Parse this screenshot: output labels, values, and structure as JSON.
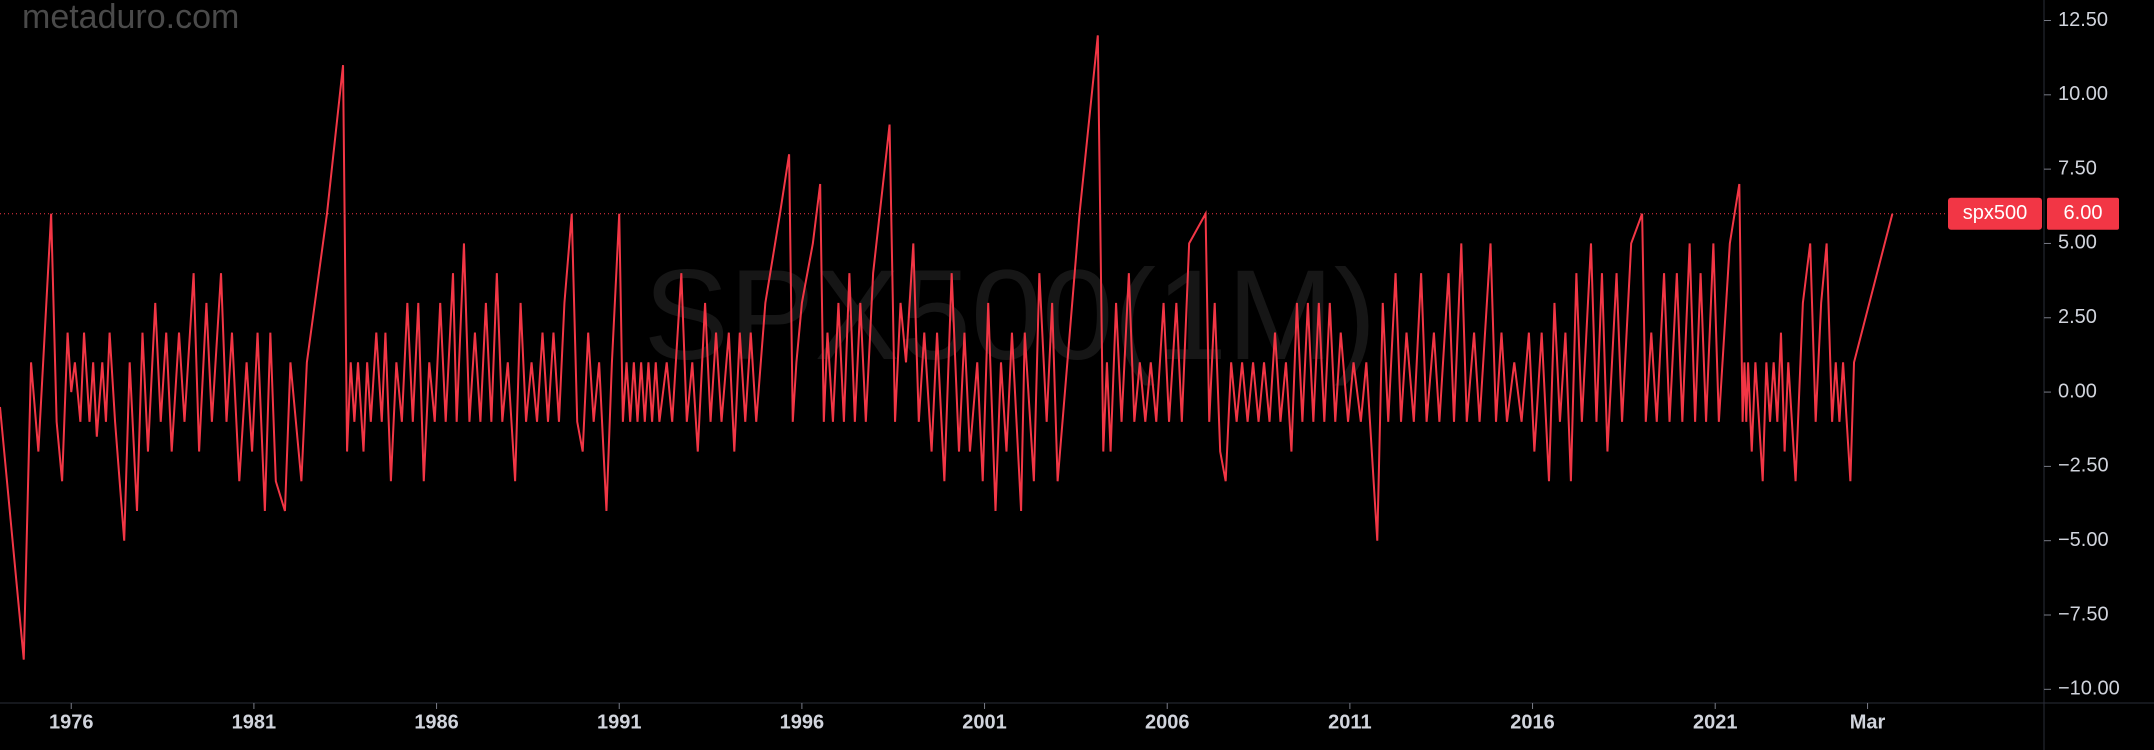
{
  "chart_data": {
    "type": "line",
    "source": "metaduro.com",
    "watermark": "SPX500(1M)",
    "xlim": [
      1974.05,
      2030.0
    ],
    "ylim": [
      -10.46,
      13.19
    ],
    "xticks": [
      1976,
      1981,
      1986,
      1991,
      1996,
      2001,
      2006,
      2011,
      2016,
      2021,
      {
        "value": 2025.17,
        "label": "Mar"
      }
    ],
    "yticks": [
      {
        "value": 12.5,
        "label": "12.50"
      },
      {
        "value": 10,
        "label": "10.00"
      },
      {
        "value": 7.5,
        "label": "7.50"
      },
      {
        "value": 5,
        "label": "5.00"
      },
      {
        "value": 2.5,
        "label": "2.50"
      },
      {
        "value": 0,
        "label": "0.00"
      },
      {
        "value": -2.5,
        "label": "−2.50"
      },
      {
        "value": -5,
        "label": "−5.00"
      },
      {
        "value": -7.5,
        "label": "−7.50"
      },
      {
        "value": -10,
        "label": "−10.00"
      }
    ],
    "grid": false,
    "x": [
      1974.05,
      1974.7,
      1974.9,
      1975.1,
      1975.45,
      1975.6,
      1975.75,
      1975.9,
      1976.0,
      1976.1,
      1976.25,
      1976.35,
      1976.5,
      1976.6,
      1976.7,
      1976.85,
      1976.95,
      1977.05,
      1977.2,
      1977.45,
      1977.6,
      1977.8,
      1977.95,
      1978.1,
      1978.3,
      1978.45,
      1978.6,
      1978.75,
      1978.95,
      1979.1,
      1979.35,
      1979.5,
      1979.7,
      1979.85,
      1980.1,
      1980.25,
      1980.4,
      1980.6,
      1980.8,
      1980.95,
      1981.1,
      1981.3,
      1981.45,
      1981.6,
      1981.85,
      1982.0,
      1982.15,
      1982.3,
      1982.45,
      1983.0,
      1983.44,
      1983.55,
      1983.65,
      1983.75,
      1983.85,
      1984.0,
      1984.1,
      1984.2,
      1984.35,
      1984.5,
      1984.6,
      1984.75,
      1984.9,
      1985.05,
      1985.2,
      1985.35,
      1985.5,
      1985.65,
      1985.8,
      1985.95,
      1986.1,
      1986.25,
      1986.45,
      1986.55,
      1986.75,
      1986.9,
      1987.05,
      1987.2,
      1987.35,
      1987.5,
      1987.65,
      1987.8,
      1987.95,
      1988.15,
      1988.3,
      1988.45,
      1988.6,
      1988.75,
      1988.9,
      1989.05,
      1989.2,
      1989.35,
      1989.5,
      1989.7,
      1989.85,
      1990.0,
      1990.15,
      1990.3,
      1990.45,
      1990.65,
      1990.8,
      1991.0,
      1991.1,
      1991.2,
      1991.3,
      1991.4,
      1991.5,
      1991.6,
      1991.7,
      1991.8,
      1991.9,
      1992.0,
      1992.1,
      1992.3,
      1992.45,
      1992.7,
      1992.85,
      1993.0,
      1993.15,
      1993.35,
      1993.5,
      1993.65,
      1993.8,
      1994.0,
      1994.15,
      1994.3,
      1994.45,
      1994.6,
      1994.75,
      1995.0,
      1995.4,
      1995.65,
      1995.75,
      1995.85,
      1996.0,
      1996.3,
      1996.5,
      1996.6,
      1996.7,
      1996.85,
      1997.0,
      1997.15,
      1997.3,
      1997.45,
      1997.6,
      1997.75,
      1997.95,
      1998.4,
      1998.55,
      1998.7,
      1998.85,
      1999.05,
      1999.2,
      1999.35,
      1999.55,
      1999.7,
      1999.9,
      2000.1,
      2000.3,
      2000.45,
      2000.6,
      2000.8,
      2000.95,
      2001.1,
      2001.3,
      2001.45,
      2001.6,
      2001.75,
      2002.0,
      2002.1,
      2002.35,
      2002.5,
      2002.7,
      2002.85,
      2003.0,
      2003.6,
      2004.1,
      2004.25,
      2004.35,
      2004.45,
      2004.6,
      2004.75,
      2004.95,
      2005.1,
      2005.25,
      2005.4,
      2005.55,
      2005.7,
      2005.9,
      2006.05,
      2006.25,
      2006.4,
      2006.6,
      2007.05,
      2007.15,
      2007.3,
      2007.45,
      2007.6,
      2007.75,
      2007.9,
      2008.05,
      2008.2,
      2008.35,
      2008.5,
      2008.65,
      2008.8,
      2008.95,
      2009.1,
      2009.25,
      2009.4,
      2009.55,
      2009.7,
      2009.85,
      2010.0,
      2010.15,
      2010.3,
      2010.45,
      2010.6,
      2010.75,
      2010.95,
      2011.1,
      2011.3,
      2011.45,
      2011.75,
      2011.9,
      2012.05,
      2012.25,
      2012.4,
      2012.55,
      2012.75,
      2012.95,
      2013.1,
      2013.3,
      2013.45,
      2013.7,
      2013.85,
      2014.05,
      2014.2,
      2014.4,
      2014.55,
      2014.85,
      2015.0,
      2015.15,
      2015.3,
      2015.5,
      2015.7,
      2015.9,
      2016.05,
      2016.25,
      2016.45,
      2016.6,
      2016.75,
      2016.9,
      2017.05,
      2017.2,
      2017.35,
      2017.6,
      2017.75,
      2017.9,
      2018.05,
      2018.3,
      2018.45,
      2018.7,
      2019.0,
      2019.1,
      2019.25,
      2019.4,
      2019.6,
      2019.75,
      2019.95,
      2020.1,
      2020.3,
      2020.45,
      2020.6,
      2020.75,
      2020.95,
      2021.1,
      2021.4,
      2021.66,
      2021.75,
      2021.8,
      2021.85,
      2021.9,
      2022.0,
      2022.1,
      2022.2,
      2022.3,
      2022.4,
      2022.5,
      2022.6,
      2022.7,
      2022.8,
      2022.9,
      2023.0,
      2023.2,
      2023.4,
      2023.6,
      2023.75,
      2023.9,
      2024.05,
      2024.2,
      2024.3,
      2024.4,
      2024.5,
      2024.7,
      2024.8,
      2025.85
    ],
    "series": [
      {
        "name": "spx500",
        "color": "#f23645",
        "last_value_label": "6.00",
        "values": [
          -0.5,
          -9,
          1,
          -2,
          6,
          -1,
          -3,
          2,
          0,
          1,
          -1,
          2,
          -1,
          1,
          -1.5,
          1,
          -1,
          2,
          -1,
          -5,
          1,
          -4,
          2,
          -2,
          3,
          -1,
          2,
          -2,
          2,
          -1,
          4,
          -2,
          3,
          -1,
          4,
          -1,
          2,
          -3,
          1,
          -2,
          2,
          -4,
          2,
          -3,
          -4,
          1,
          -1,
          -3,
          1,
          6,
          11,
          -2,
          1,
          -1,
          1,
          -2,
          1,
          -1,
          2,
          -1,
          2,
          -3,
          1,
          -1,
          3,
          -1,
          3,
          -3,
          1,
          -1,
          3,
          -1,
          4,
          -1,
          5,
          -1,
          2,
          -1,
          3,
          -1,
          4,
          -1,
          1,
          -3,
          3,
          -1,
          1,
          -1,
          2,
          -1,
          2,
          -1,
          3,
          6,
          -1,
          -2,
          2,
          -1,
          1,
          -4,
          1,
          6,
          -1,
          1,
          -1,
          1,
          -1,
          1,
          -1,
          1,
          -1,
          1,
          -1,
          1,
          -1,
          4,
          -1,
          1,
          -2,
          3,
          -1,
          2,
          -1,
          2,
          -2,
          2,
          -1,
          2,
          -1,
          3,
          6,
          8,
          -1,
          1,
          3,
          5,
          7,
          -1,
          2,
          -1,
          3,
          -1,
          4,
          -1,
          3,
          -1,
          4,
          9,
          -1,
          3,
          1,
          5,
          -1,
          2,
          -2,
          2,
          -3,
          4,
          -2,
          2,
          -2,
          1,
          -3,
          3,
          -4,
          1,
          -2,
          2,
          -4,
          2,
          -3,
          4,
          -1,
          3,
          -3,
          6,
          12,
          -2,
          1,
          -2,
          3,
          -1,
          4,
          -1,
          1,
          -1,
          1,
          -1,
          3,
          -1,
          3,
          -1,
          5,
          6,
          -1,
          3,
          -2,
          -3,
          1,
          -1,
          1,
          -1,
          1,
          -1,
          1,
          -1,
          2,
          -1,
          1,
          -2,
          3,
          -1,
          3,
          -1,
          3,
          -1,
          3,
          -1,
          2,
          -1,
          1,
          -1,
          1,
          -5,
          3,
          -1,
          4,
          -1,
          2,
          -1,
          4,
          -1,
          2,
          -1,
          4,
          -1,
          5,
          -1,
          2,
          -1,
          5,
          -1,
          2,
          -1,
          1,
          -1,
          2,
          -2,
          2,
          -3,
          3,
          -1,
          2,
          -3,
          4,
          -1,
          5,
          -1,
          4,
          -2,
          4,
          -1,
          5,
          6,
          -1,
          2,
          -1,
          4,
          -1,
          4,
          -1,
          5,
          -1,
          4,
          -1,
          5,
          -1,
          5,
          7,
          -1,
          1,
          -1,
          1,
          -2,
          1,
          -1,
          -3,
          1,
          -1,
          1,
          -1,
          2,
          -2,
          1,
          -3,
          3,
          5,
          -1,
          3,
          5,
          -1,
          1,
          -1,
          1,
          -3,
          1,
          6
        ]
      }
    ]
  }
}
